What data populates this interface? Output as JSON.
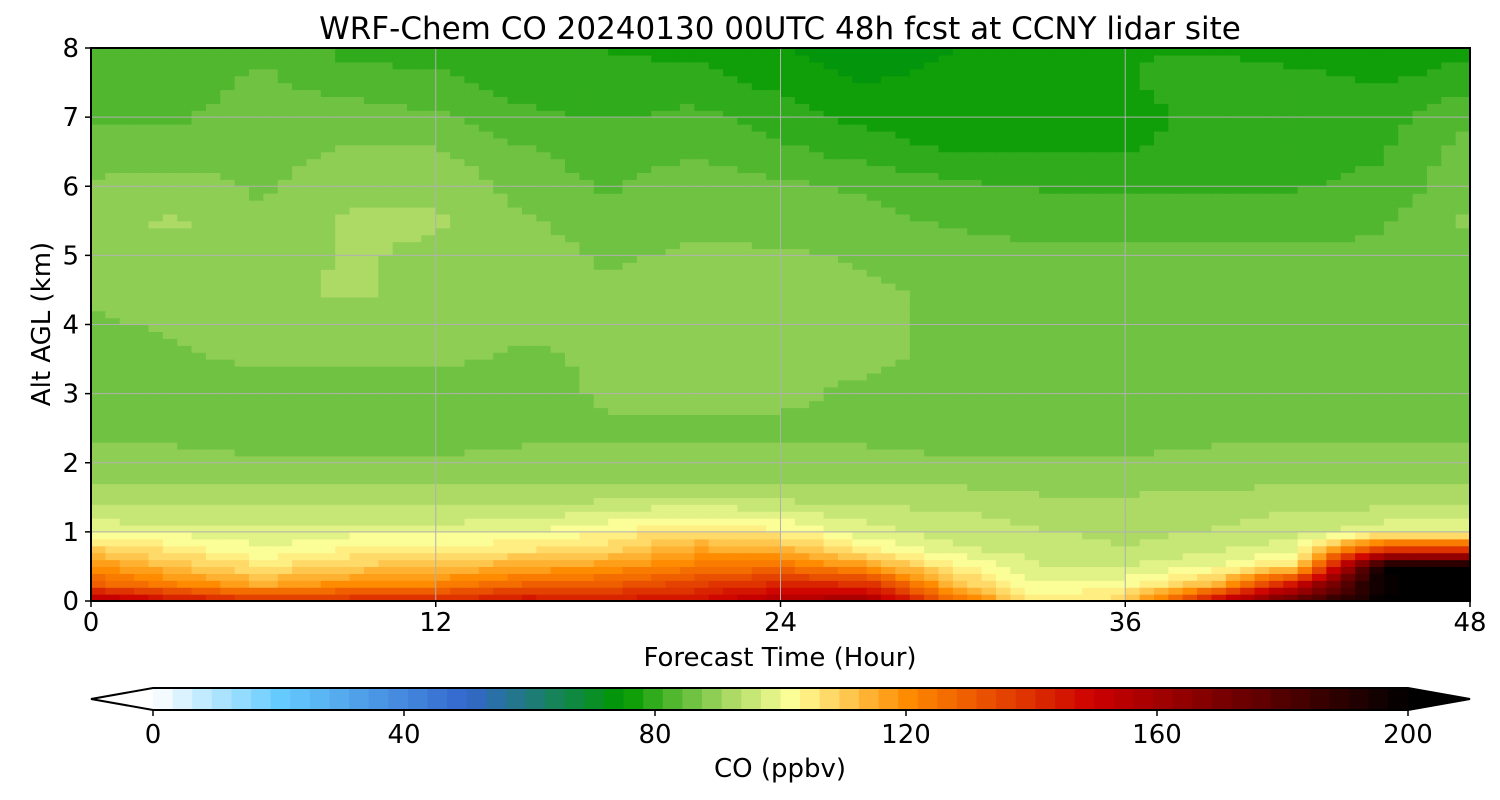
{
  "chart_data": {
    "type": "heatmap",
    "title": "WRF-Chem CO  20240130 00UTC 48h fcst at CCNY lidar site",
    "xlabel": "Forecast Time (Hour)",
    "ylabel": "Alt AGL (km)",
    "xlim": [
      0,
      48
    ],
    "ylim": [
      0,
      8
    ],
    "xticks": [
      0,
      12,
      24,
      36,
      48
    ],
    "yticks": [
      0,
      1,
      2,
      3,
      4,
      5,
      6,
      7,
      8
    ],
    "grid": true,
    "colorbar": {
      "label": "CO  (ppbv)",
      "range": [
        0,
        200
      ],
      "ticks": [
        0,
        40,
        80,
        120,
        160,
        200
      ],
      "extend": "both",
      "orientation": "horizontal",
      "colors": [
        {
          "v": 0,
          "c": "#ffffff"
        },
        {
          "v": 20,
          "c": "#66ccff"
        },
        {
          "v": 50,
          "c": "#3366cc"
        },
        {
          "v": 75,
          "c": "#009900"
        },
        {
          "v": 90,
          "c": "#99d25a"
        },
        {
          "v": 102,
          "c": "#ffff99"
        },
        {
          "v": 120,
          "c": "#ff8c00"
        },
        {
          "v": 150,
          "c": "#cc0000"
        },
        {
          "v": 175,
          "c": "#660000"
        },
        {
          "v": 200,
          "c": "#000000"
        }
      ]
    },
    "x": [
      0,
      3,
      6,
      9,
      12,
      15,
      18,
      21,
      24,
      27,
      30,
      33,
      36,
      39,
      42,
      45,
      48
    ],
    "y": [
      0,
      0.25,
      0.5,
      0.75,
      1,
      1.25,
      1.5,
      1.75,
      2,
      2.5,
      3,
      3.5,
      4,
      4.5,
      5,
      5.5,
      6,
      6.5,
      7,
      7.5,
      8
    ],
    "z": [
      [
        160,
        148,
        140,
        142,
        142,
        148,
        146,
        148,
        158,
        162,
        128,
        104,
        108,
        150,
        180,
        200,
        200
      ],
      [
        130,
        122,
        115,
        120,
        122,
        128,
        130,
        136,
        142,
        140,
        112,
        100,
        102,
        112,
        150,
        200,
        200
      ],
      [
        120,
        112,
        106,
        110,
        112,
        115,
        118,
        124,
        126,
        118,
        104,
        97,
        97,
        100,
        108,
        200,
        200
      ],
      [
        110,
        105,
        100,
        104,
        104,
        106,
        108,
        116,
        114,
        104,
        98,
        95,
        94,
        96,
        100,
        140,
        140
      ],
      [
        100,
        99,
        98,
        99,
        99,
        100,
        103,
        108,
        104,
        98,
        95,
        94,
        93,
        94,
        95,
        100,
        100
      ],
      [
        95,
        95,
        95,
        95,
        95,
        96,
        98,
        100,
        98,
        96,
        94,
        93,
        93,
        93,
        94,
        95,
        95
      ],
      [
        92,
        92,
        92,
        92,
        92,
        92,
        93,
        94,
        93,
        92,
        92,
        91,
        91,
        91,
        92,
        92,
        92
      ],
      [
        90,
        90,
        90,
        90,
        90,
        90,
        90,
        90,
        90,
        90,
        90,
        89,
        89,
        90,
        90,
        90,
        90
      ],
      [
        88,
        88,
        88,
        88,
        88,
        88,
        88,
        88,
        88,
        88,
        88,
        88,
        88,
        88,
        88,
        88,
        88
      ],
      [
        87,
        87,
        86,
        86,
        86,
        87,
        87,
        87,
        87,
        87,
        86,
        85,
        86,
        87,
        87,
        87,
        87
      ],
      [
        85,
        85,
        86,
        86,
        86,
        86,
        88,
        88,
        88,
        87,
        86,
        85,
        86,
        86,
        86,
        86,
        86
      ],
      [
        86,
        87,
        88,
        88,
        88,
        87,
        88,
        88,
        88,
        88,
        87,
        87,
        86,
        86,
        86,
        86,
        86
      ],
      [
        87,
        88,
        89,
        90,
        89,
        88,
        88,
        88,
        88,
        88,
        87,
        87,
        87,
        87,
        87,
        87,
        87
      ],
      [
        88,
        89,
        90,
        91,
        90,
        89,
        88,
        89,
        89,
        88,
        87,
        86,
        86,
        86,
        86,
        86,
        87
      ],
      [
        89,
        90,
        89,
        91,
        90,
        89,
        87,
        88,
        88,
        87,
        86,
        85,
        85,
        85,
        85,
        85,
        87
      ],
      [
        90,
        91,
        88,
        91,
        91,
        88,
        86,
        87,
        86,
        85,
        84,
        83,
        83,
        83,
        83,
        84,
        88
      ],
      [
        88,
        89,
        87,
        90,
        90,
        86,
        84,
        86,
        85,
        84,
        82,
        81,
        81,
        81,
        81,
        82,
        87
      ],
      [
        86,
        86,
        86,
        88,
        88,
        85,
        83,
        84,
        82,
        80,
        78,
        78,
        78,
        79,
        80,
        81,
        86
      ],
      [
        84,
        84,
        86,
        86,
        85,
        82,
        81,
        82,
        80,
        77,
        76,
        76,
        77,
        79,
        80,
        80,
        84
      ],
      [
        83,
        83,
        85,
        83,
        82,
        80,
        79,
        80,
        77,
        75,
        76,
        77,
        78,
        79,
        79,
        78,
        80
      ],
      [
        82,
        82,
        84,
        80,
        80,
        79,
        78,
        77,
        75,
        73,
        75,
        77,
        78,
        78,
        77,
        76,
        77
      ]
    ]
  }
}
